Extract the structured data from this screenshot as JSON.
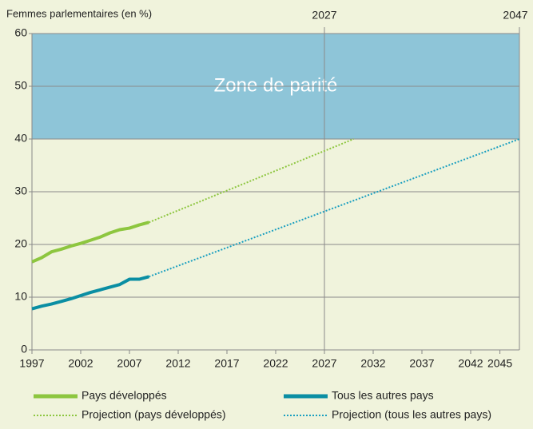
{
  "chart_data": {
    "type": "line",
    "ylabel": "Femmes parlementaires (en %)",
    "xlim": [
      1997,
      2047
    ],
    "ylim": [
      0,
      60
    ],
    "xticks": [
      1997,
      2002,
      2007,
      2012,
      2017,
      2022,
      2027,
      2032,
      2037,
      2042,
      2045
    ],
    "yticks": [
      0,
      10,
      20,
      30,
      40,
      50,
      60
    ],
    "grid": true,
    "markers": [
      2027,
      2047
    ],
    "zone": {
      "label": "Zone de parité",
      "range": [
        40,
        60
      ],
      "color": "#8ec5d8"
    },
    "series": [
      {
        "name": "Pays développés",
        "color": "#8dc63f",
        "dash": false,
        "x": [
          1997,
          1998,
          1999,
          2000,
          2001,
          2002,
          2003,
          2004,
          2005,
          2006,
          2007,
          2008,
          2009
        ],
        "values": [
          16.7,
          17.5,
          18.6,
          19.1,
          19.7,
          20.2,
          20.8,
          21.4,
          22.2,
          22.8,
          23.1,
          23.7,
          24.2
        ]
      },
      {
        "name": "Tous les autres pays",
        "color": "#0a8ea3",
        "dash": false,
        "x": [
          1997,
          1998,
          1999,
          2000,
          2001,
          2002,
          2003,
          2004,
          2005,
          2006,
          2007,
          2008,
          2009
        ],
        "values": [
          7.8,
          8.3,
          8.7,
          9.2,
          9.7,
          10.3,
          10.9,
          11.4,
          11.9,
          12.4,
          13.4,
          13.4,
          13.9
        ]
      },
      {
        "name": "Projection (pays développés)",
        "color": "#8dc63f",
        "dash": true,
        "x": [
          2009,
          2030
        ],
        "values": [
          24.2,
          40
        ]
      },
      {
        "name": "Projection (tous les autres pays)",
        "color": "#1a9fc0",
        "dash": true,
        "x": [
          2009,
          2047
        ],
        "values": [
          13.9,
          40
        ]
      }
    ]
  }
}
